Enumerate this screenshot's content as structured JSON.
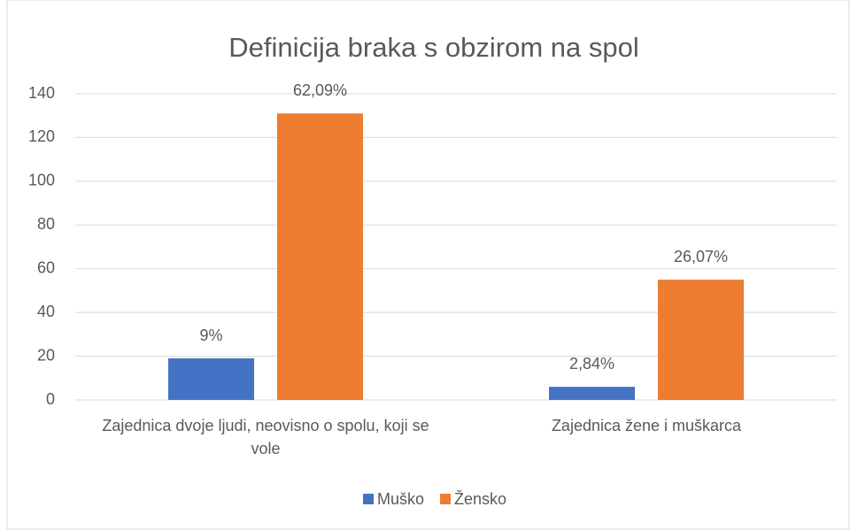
{
  "chart_data": {
    "type": "bar",
    "title": "Definicija braka s obzirom na spol",
    "categories": [
      "Zajednica dvoje ljudi, neovisno o spolu, koji se vole",
      "Zajednica žene i muškarca"
    ],
    "series": [
      {
        "name": "Muško",
        "color": "#4472c4",
        "values": [
          19,
          6
        ],
        "value_labels": [
          "9%",
          "2,84%"
        ]
      },
      {
        "name": "Žensko",
        "color": "#ed7d31",
        "values": [
          131,
          55
        ],
        "value_labels": [
          "62,09%",
          "26,07%"
        ]
      }
    ],
    "ylim": [
      0,
      140
    ],
    "yticks": [
      0,
      20,
      40,
      60,
      80,
      100,
      120,
      140
    ],
    "grid": true,
    "legend": "bottom"
  }
}
